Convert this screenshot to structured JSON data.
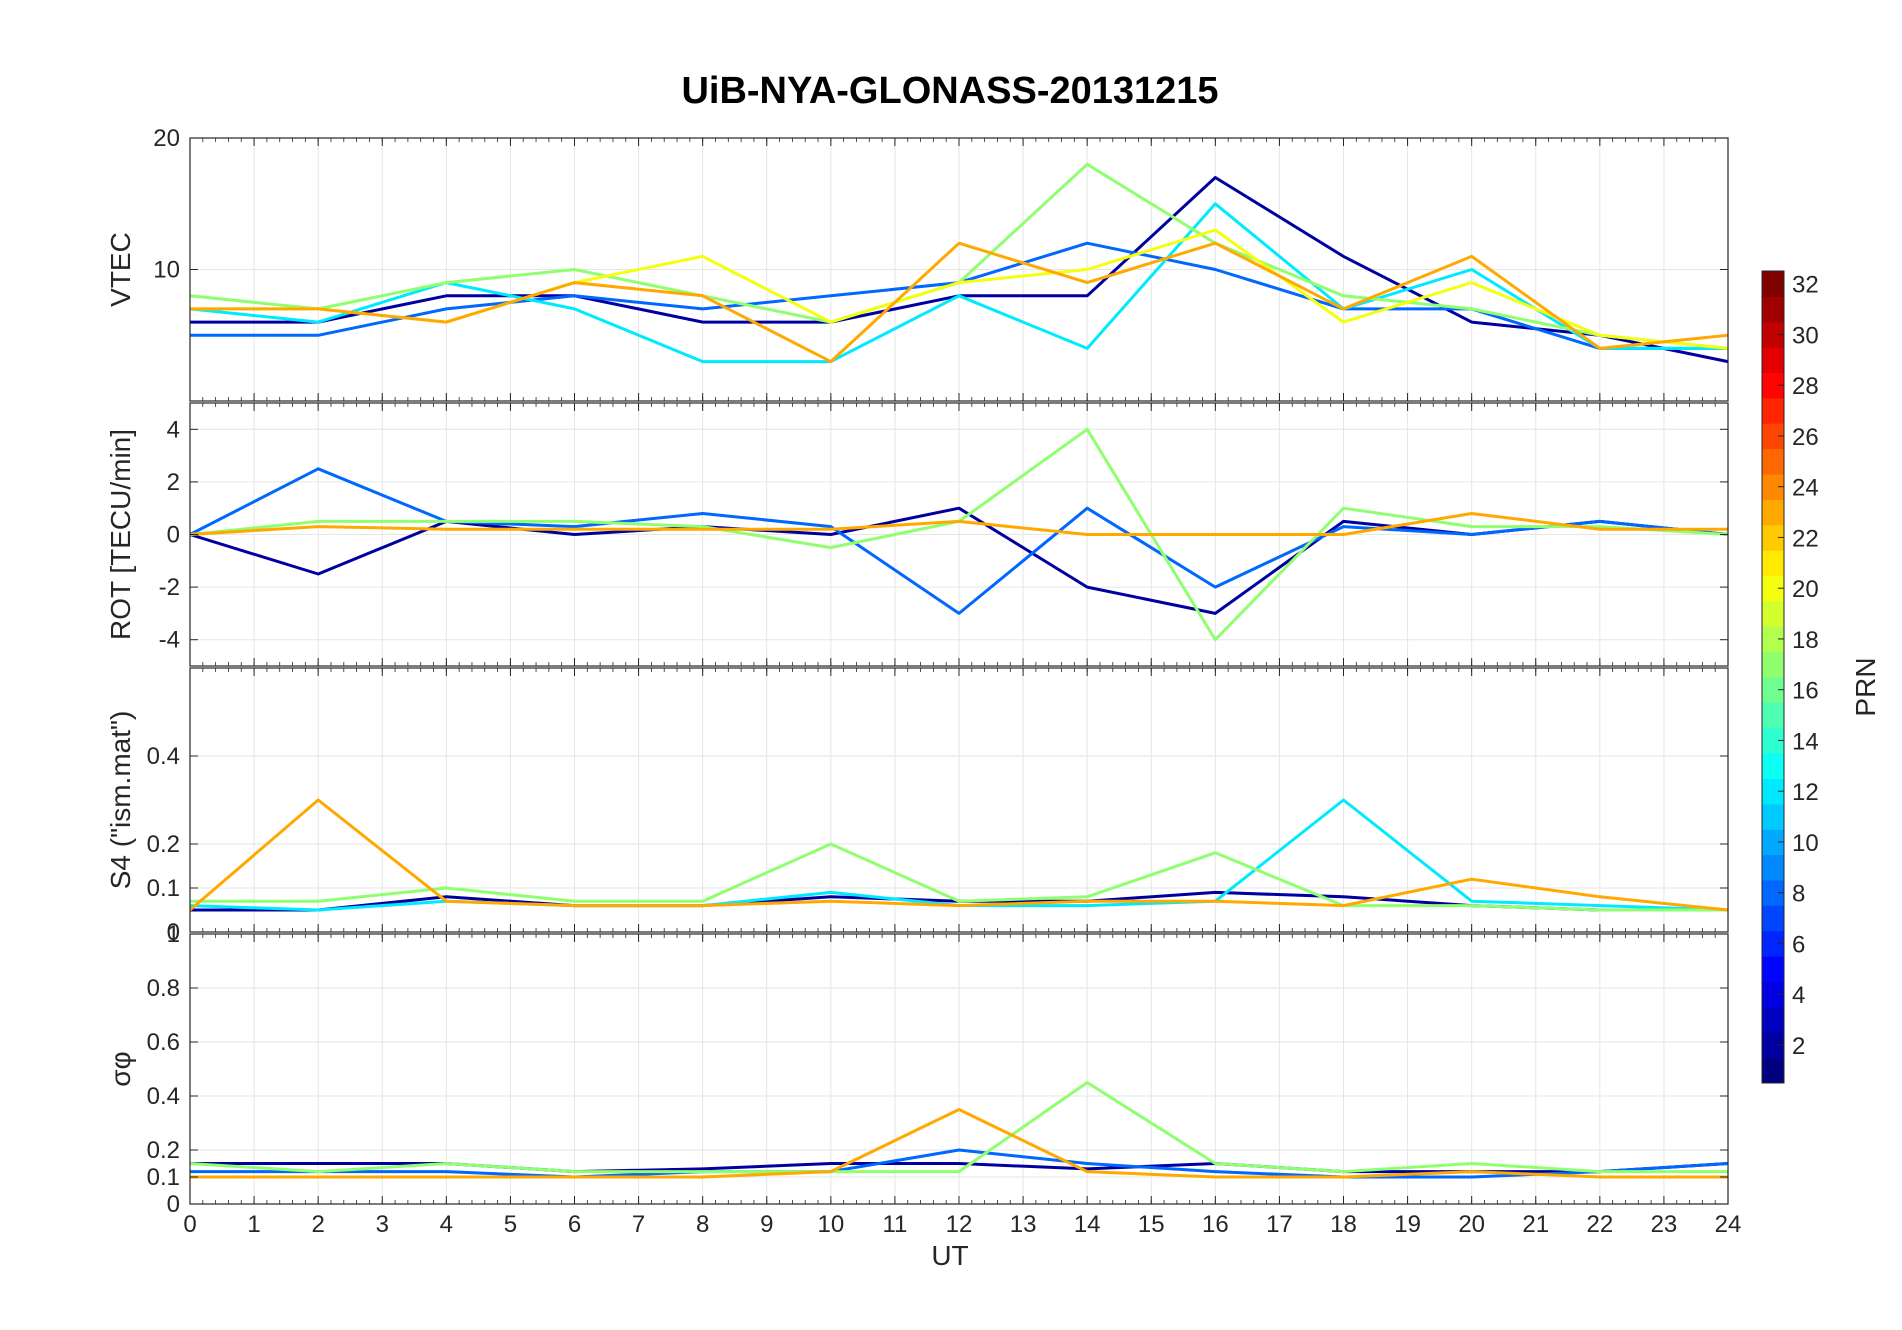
{
  "chart_data": {
    "title": "UiB-NYA-GLONASS-20131215",
    "type": "line",
    "x_axis": {
      "label": "UT",
      "range": [
        0,
        24
      ],
      "ticks": [
        0,
        1,
        2,
        3,
        4,
        5,
        6,
        7,
        8,
        9,
        10,
        11,
        12,
        13,
        14,
        15,
        16,
        17,
        18,
        19,
        20,
        21,
        22,
        23,
        24
      ]
    },
    "grid": true,
    "series_note": "multiple satellite traces colored by PRN",
    "panels": [
      {
        "ylabel": "VTEC",
        "ylim": [
          0,
          20
        ],
        "yticks": [
          0,
          10,
          20
        ],
        "tick_labels": [
          "",
          "10",
          "20"
        ],
        "series": [
          {
            "prn": 2,
            "x": [
              0,
              2,
              4,
              6,
              8,
              10,
              12,
              14,
              16,
              18,
              20,
              22,
              24
            ],
            "y": [
              6,
              6,
              8,
              8,
              6,
              6,
              8,
              8,
              17,
              11,
              6,
              5,
              3
            ]
          },
          {
            "prn": 8,
            "x": [
              0,
              2,
              4,
              6,
              8,
              10,
              12,
              14,
              16,
              18,
              20,
              22,
              24
            ],
            "y": [
              5,
              5,
              7,
              8,
              7,
              8,
              9,
              12,
              10,
              7,
              7,
              4,
              4
            ]
          },
          {
            "prn": 12,
            "x": [
              0,
              2,
              4,
              6,
              8,
              10,
              12,
              14,
              16,
              18,
              20,
              22,
              24
            ],
            "y": [
              7,
              6,
              9,
              7,
              3,
              3,
              8,
              4,
              15,
              7,
              10,
              4,
              4
            ]
          },
          {
            "prn": 17,
            "x": [
              0,
              2,
              4,
              6,
              8,
              10,
              12,
              14,
              16,
              18,
              20,
              22,
              24
            ],
            "y": [
              8,
              7,
              9,
              10,
              8,
              6,
              9,
              18,
              12,
              8,
              7,
              5,
              4
            ]
          },
          {
            "prn": 20,
            "x": [
              0,
              2,
              4,
              6,
              8,
              10,
              12,
              14,
              16,
              18,
              20,
              22,
              24
            ],
            "y": [
              7,
              7,
              6,
              9,
              11,
              6,
              9,
              10,
              13,
              6,
              9,
              5,
              4
            ]
          },
          {
            "prn": 23,
            "x": [
              0,
              2,
              4,
              6,
              8,
              10,
              12,
              14,
              16,
              18,
              20,
              22,
              24
            ],
            "y": [
              7,
              7,
              6,
              9,
              8,
              3,
              12,
              9,
              12,
              7,
              11,
              4,
              5
            ]
          }
        ]
      },
      {
        "ylabel": "ROT [TECU/min]",
        "ylim": [
          -5,
          5
        ],
        "yticks": [
          -4,
          -2,
          0,
          2,
          4
        ],
        "tick_labels": [
          "-4",
          "-2",
          "0",
          "2",
          "4"
        ],
        "series": [
          {
            "prn": 2,
            "x": [
              0,
              2,
              4,
              6,
              8,
              10,
              12,
              14,
              16,
              18,
              20,
              22,
              24
            ],
            "y": [
              0,
              -1.5,
              0.5,
              0,
              0.3,
              0,
              1,
              -2,
              -3,
              0.5,
              0,
              0.5,
              0
            ]
          },
          {
            "prn": 8,
            "x": [
              0,
              2,
              4,
              6,
              8,
              10,
              12,
              14,
              16,
              18,
              20,
              22,
              24
            ],
            "y": [
              0,
              2.5,
              0.5,
              0.3,
              0.8,
              0.3,
              -3,
              1,
              -2,
              0.3,
              0,
              0.5,
              0
            ]
          },
          {
            "prn": 17,
            "x": [
              0,
              2,
              4,
              6,
              8,
              10,
              12,
              14,
              16,
              18,
              20,
              22,
              24
            ],
            "y": [
              0,
              0.5,
              0.5,
              0.5,
              0.3,
              -0.5,
              0.5,
              4,
              -4,
              1,
              0.3,
              0.3,
              0
            ]
          },
          {
            "prn": 23,
            "x": [
              0,
              2,
              4,
              6,
              8,
              10,
              12,
              14,
              16,
              18,
              20,
              22,
              24
            ],
            "y": [
              0,
              0.3,
              0.2,
              0.2,
              0.2,
              0.2,
              0.5,
              0,
              0,
              0,
              0.8,
              0.2,
              0.2
            ]
          }
        ]
      },
      {
        "ylabel": "S4 (\"ism.mat\")",
        "ylim": [
          0,
          0.6
        ],
        "yticks": [
          0,
          0.1,
          0.2,
          0.4
        ],
        "tick_labels": [
          "0",
          "0.1",
          "0.2",
          "0.4"
        ],
        "series": [
          {
            "prn": 2,
            "x": [
              0,
              2,
              4,
              6,
              8,
              10,
              12,
              14,
              16,
              18,
              20,
              22,
              24
            ],
            "y": [
              0.05,
              0.05,
              0.08,
              0.06,
              0.06,
              0.08,
              0.07,
              0.07,
              0.09,
              0.08,
              0.06,
              0.05,
              0.05
            ]
          },
          {
            "prn": 12,
            "x": [
              0,
              2,
              4,
              6,
              8,
              10,
              12,
              14,
              16,
              18,
              20,
              22,
              24
            ],
            "y": [
              0.06,
              0.05,
              0.07,
              0.06,
              0.06,
              0.09,
              0.06,
              0.06,
              0.07,
              0.3,
              0.07,
              0.06,
              0.05
            ]
          },
          {
            "prn": 17,
            "x": [
              0,
              2,
              4,
              6,
              8,
              10,
              12,
              14,
              16,
              18,
              20,
              22,
              24
            ],
            "y": [
              0.07,
              0.07,
              0.1,
              0.07,
              0.07,
              0.2,
              0.07,
              0.08,
              0.18,
              0.06,
              0.06,
              0.05,
              0.05
            ]
          },
          {
            "prn": 23,
            "x": [
              0,
              2,
              4,
              6,
              8,
              10,
              12,
              14,
              16,
              18,
              20,
              22,
              24
            ],
            "y": [
              0.05,
              0.3,
              0.07,
              0.06,
              0.06,
              0.07,
              0.06,
              0.07,
              0.07,
              0.06,
              0.12,
              0.08,
              0.05
            ]
          }
        ]
      },
      {
        "ylabel": "σφ",
        "ylim": [
          0,
          1
        ],
        "yticks": [
          0,
          0.1,
          0.2,
          0.4,
          0.6,
          0.8,
          1
        ],
        "tick_labels": [
          "0",
          "0.1",
          "0.2",
          "0.4",
          "0.6",
          "0.8",
          "1"
        ],
        "series": [
          {
            "prn": 2,
            "x": [
              0,
              2,
              4,
              6,
              8,
              10,
              12,
              14,
              16,
              18,
              20,
              22,
              24
            ],
            "y": [
              0.15,
              0.15,
              0.15,
              0.12,
              0.13,
              0.15,
              0.15,
              0.13,
              0.15,
              0.12,
              0.12,
              0.12,
              0.15
            ]
          },
          {
            "prn": 8,
            "x": [
              0,
              2,
              4,
              6,
              8,
              10,
              12,
              14,
              16,
              18,
              20,
              22,
              24
            ],
            "y": [
              0.12,
              0.12,
              0.12,
              0.1,
              0.12,
              0.12,
              0.2,
              0.15,
              0.12,
              0.1,
              0.1,
              0.12,
              0.15
            ]
          },
          {
            "prn": 17,
            "x": [
              0,
              2,
              4,
              6,
              8,
              10,
              12,
              14,
              16,
              18,
              20,
              22,
              24
            ],
            "y": [
              0.15,
              0.12,
              0.15,
              0.12,
              0.12,
              0.12,
              0.12,
              0.45,
              0.15,
              0.12,
              0.15,
              0.12,
              0.12
            ]
          },
          {
            "prn": 23,
            "x": [
              0,
              2,
              4,
              6,
              8,
              10,
              12,
              14,
              16,
              18,
              20,
              22,
              24
            ],
            "y": [
              0.1,
              0.1,
              0.1,
              0.1,
              0.1,
              0.12,
              0.35,
              0.12,
              0.1,
              0.1,
              0.12,
              0.1,
              0.1
            ]
          }
        ]
      }
    ],
    "colorbar": {
      "label": "PRN",
      "range": [
        1,
        32
      ],
      "ticks": [
        2,
        4,
        6,
        8,
        10,
        12,
        14,
        16,
        18,
        20,
        22,
        24,
        26,
        28,
        30,
        32
      ],
      "colormap": "jet"
    }
  }
}
